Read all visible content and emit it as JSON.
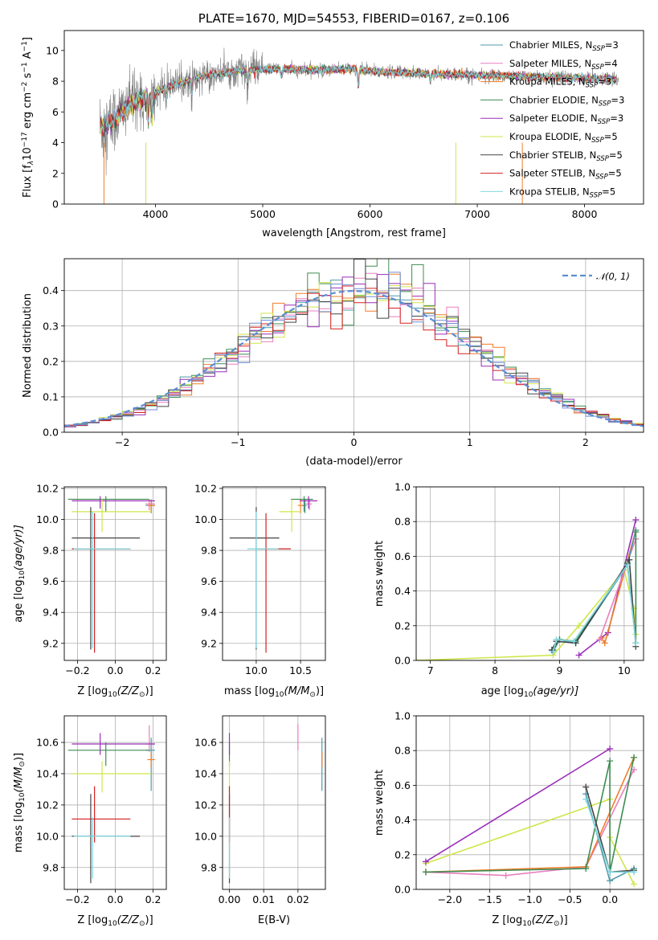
{
  "colors": {
    "Chabrier MILES": "#4f9aa8",
    "Salpeter MILES": "#e87fbf",
    "Kroupa MILES": "#ef7d2a",
    "Chabrier ELODIE": "#3e8c52",
    "Salpeter ELODIE": "#9b2fb8",
    "Kroupa ELODIE": "#cfe64a",
    "Chabrier STELIB": "#444444",
    "Salpeter STELIB": "#d42020",
    "Kroupa STELIB": "#7fd8e0",
    "Kroupa MILES hist": "#6f8fd6",
    "grid": "#b0b0b0",
    "normal": "#5b8fd4",
    "data": "#808080"
  },
  "chart_data": [
    {
      "id": "spectrum",
      "type": "line",
      "title": "PLATE=1670, MJD=54553, FIBERID=0167, z=0.106",
      "xlabel": "wavelength [Angstrom, rest frame]",
      "ylabel": "Flux [f",
      "ylabel_parts": [
        "Flux [f",
        "λ",
        "10",
        "−17",
        " erg cm",
        "−2",
        " s",
        "−1",
        " A",
        "−1",
        "]"
      ],
      "xlim": [
        3150,
        8550
      ],
      "ylim": [
        0,
        11.3
      ],
      "xticks": [
        4000,
        5000,
        6000,
        7000,
        8000
      ],
      "yticks": [
        0,
        2,
        4,
        6,
        8,
        10
      ],
      "grid": false,
      "legend_placement": "top-right",
      "legend": [
        {
          "name": "Chabrier MILES",
          "nssp": "3"
        },
        {
          "name": "Salpeter MILES",
          "nssp": "4"
        },
        {
          "name": "Kroupa MILES",
          "nssp": "3"
        },
        {
          "name": "Chabrier ELODIE",
          "nssp": "3"
        },
        {
          "name": "Salpeter ELODIE",
          "nssp": "3"
        },
        {
          "name": "Kroupa ELODIE",
          "nssp": "5"
        },
        {
          "name": "Chabrier STELIB",
          "nssp": "5"
        },
        {
          "name": "Salpeter STELIB",
          "nssp": "5"
        },
        {
          "name": "Kroupa STELIB",
          "nssp": "5"
        }
      ],
      "legend_sub": "SSP",
      "legend_prefix": "N",
      "data_range": [
        3480,
        8320
      ],
      "continuum": [
        [
          3480,
          5.0
        ],
        [
          3600,
          5.3
        ],
        [
          3700,
          6.2
        ],
        [
          3800,
          6.6
        ],
        [
          3950,
          7.0
        ],
        [
          4100,
          7.6
        ],
        [
          4300,
          8.0
        ],
        [
          4500,
          8.4
        ],
        [
          4800,
          8.7
        ],
        [
          5100,
          8.8
        ],
        [
          5500,
          8.7
        ],
        [
          5800,
          8.8
        ],
        [
          6100,
          8.6
        ],
        [
          6500,
          8.5
        ],
        [
          7000,
          8.4
        ],
        [
          7500,
          8.3
        ],
        [
          8000,
          8.2
        ],
        [
          8320,
          8.1
        ]
      ],
      "absorption_lines": [
        [
          3933,
          1.6
        ],
        [
          3968,
          1.5
        ],
        [
          4101,
          0.8
        ],
        [
          4340,
          1.0
        ],
        [
          4861,
          0.9
        ],
        [
          5175,
          0.6
        ],
        [
          5892,
          1.2
        ],
        [
          6563,
          0.5
        ]
      ],
      "noise_amplitude_blue": 2.2,
      "noise_amplitude_red": 0.35
    },
    {
      "id": "residuals",
      "type": "bar",
      "xlabel": "(data-model)/error",
      "ylabel": "Normed distribution",
      "xlim": [
        -2.5,
        2.5
      ],
      "ylim": [
        0,
        0.49
      ],
      "xticks": [
        -2,
        -1,
        0,
        1,
        2
      ],
      "yticks": [
        0.0,
        0.1,
        0.2,
        0.3,
        0.4
      ],
      "grid": true,
      "legend_placement": "top-right",
      "normal_label": "𝒩(0, 1)",
      "bin_width": 0.1,
      "bin_start": -2.5,
      "hist_mean": 0.05,
      "hist_sigma": 1.0,
      "normal_mean": 0.0,
      "normal_sigma": 1.0
    },
    {
      "id": "age-Z",
      "type": "scatter",
      "xlabel": "Z [log",
      "xlabel_parts": [
        "Z [log",
        "10",
        "(Z/Z",
        "⊙",
        ")]"
      ],
      "ylabel": "age  [log",
      "ylabel_parts": [
        "age  [log",
        "10",
        "(age/yr)]"
      ],
      "xlim": [
        -0.27,
        0.27
      ],
      "ylim": [
        9.09,
        10.21
      ],
      "xticks": [
        -0.2,
        0.0,
        0.2
      ],
      "yticks": [
        9.2,
        9.4,
        9.6,
        9.8,
        10.0,
        10.2
      ],
      "grid": true,
      "points": [
        {
          "series": "Chabrier MILES",
          "x": 0.19,
          "y": 10.09,
          "xerr": [
            0.03,
            0.02
          ],
          "yerr": [
            0.05,
            0.04
          ]
        },
        {
          "series": "Salpeter MILES",
          "x": 0.18,
          "y": 10.1,
          "xerr": [
            0.02,
            0.03
          ],
          "yerr": [
            0.04,
            0.03
          ]
        },
        {
          "series": "Kroupa MILES",
          "x": 0.19,
          "y": 10.09,
          "xerr": [
            0.02,
            0.02
          ],
          "yerr": [
            0.05,
            0.04
          ]
        },
        {
          "series": "Chabrier ELODIE",
          "x": -0.05,
          "y": 10.13,
          "xerr": [
            0.2,
            0.23
          ],
          "yerr": [
            0.08,
            0.02
          ]
        },
        {
          "series": "Salpeter ELODIE",
          "x": -0.08,
          "y": 10.12,
          "xerr": [
            0.15,
            0.29
          ],
          "yerr": [
            0.05,
            0.03
          ]
        },
        {
          "series": "Kroupa ELODIE",
          "x": -0.07,
          "y": 10.05,
          "xerr": [
            0.16,
            0.26
          ],
          "yerr": [
            0.13,
            0.08
          ]
        },
        {
          "series": "Chabrier STELIB",
          "x": -0.13,
          "y": 9.88,
          "xerr": [
            0.1,
            0.26
          ],
          "yerr": [
            0.72,
            0.2
          ]
        },
        {
          "series": "Salpeter STELIB",
          "x": -0.11,
          "y": 9.81,
          "xerr": [
            0.12,
            0.19
          ],
          "yerr": [
            0.67,
            0.23
          ]
        },
        {
          "series": "Kroupa STELIB",
          "x": -0.12,
          "y": 9.81,
          "xerr": [
            0.1,
            0.2
          ],
          "yerr": [
            0.64,
            0.24
          ]
        }
      ]
    },
    {
      "id": "age-mass",
      "type": "scatter",
      "xlabel": "mass [log",
      "xlabel_parts": [
        "mass [log",
        "10",
        "(M/M",
        "⊙",
        ")]"
      ],
      "ylabel": "",
      "xlim": [
        9.62,
        10.78
      ],
      "ylim": [
        9.09,
        10.21
      ],
      "xticks": [
        10.0,
        10.5
      ],
      "yticks": [
        9.2,
        9.4,
        9.6,
        9.8,
        10.0,
        10.2
      ],
      "grid": true,
      "points": [
        {
          "series": "Chabrier MILES",
          "x": 10.55,
          "y": 10.09,
          "xerr": [
            0.03,
            0.02
          ],
          "yerr": [
            0.05,
            0.04
          ]
        },
        {
          "series": "Salpeter MILES",
          "x": 10.6,
          "y": 10.1,
          "xerr": [
            0.04,
            0.03
          ],
          "yerr": [
            0.04,
            0.03
          ]
        },
        {
          "series": "Kroupa MILES",
          "x": 10.5,
          "y": 10.09,
          "xerr": [
            0.03,
            0.03
          ],
          "yerr": [
            0.05,
            0.04
          ]
        },
        {
          "series": "Chabrier ELODIE",
          "x": 10.54,
          "y": 10.13,
          "xerr": [
            0.15,
            0.1
          ],
          "yerr": [
            0.08,
            0.02
          ]
        },
        {
          "series": "Salpeter ELODIE",
          "x": 10.59,
          "y": 10.12,
          "xerr": [
            0.1,
            0.1
          ],
          "yerr": [
            0.05,
            0.03
          ]
        },
        {
          "series": "Kroupa ELODIE",
          "x": 10.4,
          "y": 10.05,
          "xerr": [
            0.14,
            0.1
          ],
          "yerr": [
            0.13,
            0.08
          ]
        },
        {
          "series": "Chabrier STELIB",
          "x": 10.0,
          "y": 9.88,
          "xerr": [
            0.3,
            0.26
          ],
          "yerr": [
            0.72,
            0.2
          ]
        },
        {
          "series": "Salpeter STELIB",
          "x": 10.11,
          "y": 9.81,
          "xerr": [
            0.1,
            0.28
          ],
          "yerr": [
            0.67,
            0.23
          ]
        },
        {
          "series": "Kroupa STELIB",
          "x": 10.0,
          "y": 9.81,
          "xerr": [
            0.1,
            0.25
          ],
          "yerr": [
            0.64,
            0.24
          ]
        }
      ]
    },
    {
      "id": "weight-age",
      "type": "line",
      "xlabel": "age  [log",
      "xlabel_parts": [
        "age  [log",
        "10",
        "(age/yr)]"
      ],
      "ylabel": "mass weight",
      "xlim": [
        6.78,
        10.3
      ],
      "ylim": [
        0,
        1.0
      ],
      "xticks": [
        7,
        8,
        9,
        10
      ],
      "yticks": [
        0.0,
        0.2,
        0.4,
        0.6,
        0.8,
        1.0
      ],
      "grid": true,
      "series": [
        {
          "name": "Kroupa ELODIE",
          "x": [
            6.78,
            8.9,
            9.3,
            10.0,
            10.15,
            10.18
          ],
          "y": [
            0.0,
            0.03,
            0.2,
            0.52,
            0.3,
            0.15
          ]
        },
        {
          "name": "Salpeter ELODIE",
          "x": [
            9.3,
            9.75,
            10.18
          ],
          "y": [
            0.03,
            0.16,
            0.81
          ]
        },
        {
          "name": "Kroupa MILES",
          "x": [
            9.65,
            9.7,
            10.18
          ],
          "y": [
            0.13,
            0.1,
            0.75
          ]
        },
        {
          "name": "Salpeter MILES",
          "x": [
            9.62,
            10.18
          ],
          "y": [
            0.12,
            0.7
          ]
        },
        {
          "name": "Chabrier MILES",
          "x": [
            8.9,
            9.0,
            9.25,
            10.05,
            10.18
          ],
          "y": [
            0.05,
            0.12,
            0.1,
            0.55,
            0.75
          ]
        },
        {
          "name": "Chabrier ELODIE",
          "x": [
            8.9,
            9.0,
            9.25,
            10.05,
            10.18,
            10.18
          ],
          "y": [
            0.06,
            0.12,
            0.11,
            0.56,
            0.1,
            0.74
          ]
        },
        {
          "name": "Chabrier STELIB",
          "x": [
            8.88,
            8.95,
            9.25,
            10.08,
            10.18
          ],
          "y": [
            0.06,
            0.11,
            0.1,
            0.58,
            0.08
          ]
        },
        {
          "name": "Kroupa STELIB",
          "x": [
            8.9,
            8.95,
            9.22,
            10.05,
            10.18
          ],
          "y": [
            0.05,
            0.12,
            0.11,
            0.55,
            0.1
          ]
        }
      ]
    },
    {
      "id": "mass-Z",
      "type": "scatter",
      "xlabel": "Z [log",
      "xlabel_parts": [
        "Z [log",
        "10",
        "(Z/Z",
        "⊙",
        ")]"
      ],
      "ylabel": "mass [log",
      "ylabel_parts": [
        "mass [log",
        "10",
        "(M/M",
        "⊙",
        ")]"
      ],
      "xlim": [
        -0.27,
        0.27
      ],
      "ylim": [
        9.66,
        10.77
      ],
      "xticks": [
        -0.2,
        0.0,
        0.2
      ],
      "yticks": [
        9.8,
        10.0,
        10.2,
        10.4,
        10.6
      ],
      "grid": true,
      "points": [
        {
          "series": "Chabrier MILES",
          "x": 0.19,
          "y": 10.55,
          "xerr": [
            0.03,
            0.02
          ],
          "yerr": [
            0.26,
            0.08
          ]
        },
        {
          "series": "Salpeter MILES",
          "x": 0.18,
          "y": 10.59,
          "xerr": [
            0.02,
            0.03
          ],
          "yerr": [
            0.05,
            0.12
          ]
        },
        {
          "series": "Kroupa MILES",
          "x": 0.19,
          "y": 10.49,
          "xerr": [
            0.02,
            0.02
          ],
          "yerr": [
            0.05,
            0.05
          ]
        },
        {
          "series": "Chabrier ELODIE",
          "x": -0.05,
          "y": 10.55,
          "xerr": [
            0.2,
            0.23
          ],
          "yerr": [
            0.1,
            0.05
          ]
        },
        {
          "series": "Salpeter ELODIE",
          "x": -0.08,
          "y": 10.59,
          "xerr": [
            0.15,
            0.29
          ],
          "yerr": [
            0.07,
            0.07
          ]
        },
        {
          "series": "Kroupa ELODIE",
          "x": -0.07,
          "y": 10.4,
          "xerr": [
            0.16,
            0.26
          ],
          "yerr": [
            0.12,
            0.08
          ]
        },
        {
          "series": "Chabrier STELIB",
          "x": -0.13,
          "y": 10.0,
          "xerr": [
            0.1,
            0.26
          ],
          "yerr": [
            0.3,
            0.27
          ]
        },
        {
          "series": "Salpeter STELIB",
          "x": -0.11,
          "y": 10.11,
          "xerr": [
            0.12,
            0.19
          ],
          "yerr": [
            0.15,
            0.21
          ]
        },
        {
          "series": "Kroupa STELIB",
          "x": -0.12,
          "y": 10.0,
          "xerr": [
            0.1,
            0.2
          ],
          "yerr": [
            0.27,
            0.12
          ]
        }
      ]
    },
    {
      "id": "mass-EBV",
      "type": "scatter",
      "xlabel": "E(B-V)",
      "ylabel": "",
      "xlim": [
        -0.002,
        0.028
      ],
      "ylim": [
        9.66,
        10.77
      ],
      "xticks": [
        0.0,
        0.01,
        0.02
      ],
      "xtick_labels": [
        "0.00",
        "0.01",
        "0.02"
      ],
      "yticks": [
        9.8,
        10.0,
        10.2,
        10.4,
        10.6
      ],
      "grid": true,
      "points": [
        {
          "series": "Chabrier MILES",
          "x": 0.027,
          "y": 10.55,
          "yerr": [
            0.26,
            0.08
          ]
        },
        {
          "series": "Salpeter MILES",
          "x": 0.02,
          "y": 10.6,
          "yerr": [
            0.05,
            0.12
          ]
        },
        {
          "series": "Kroupa MILES",
          "x": 0.027,
          "y": 10.49,
          "yerr": [
            0.05,
            0.05
          ]
        },
        {
          "series": "Chabrier ELODIE",
          "x": 0.0,
          "y": 10.55,
          "yerr": [
            0.1,
            0.05
          ]
        },
        {
          "series": "Salpeter ELODIE",
          "x": 0.0,
          "y": 10.59,
          "yerr": [
            0.07,
            0.07
          ]
        },
        {
          "series": "Kroupa ELODIE",
          "x": 0.0,
          "y": 10.4,
          "yerr": [
            0.12,
            0.08
          ]
        },
        {
          "series": "Chabrier STELIB",
          "x": 0.0,
          "y": 10.0,
          "yerr": [
            0.3,
            0.27
          ]
        },
        {
          "series": "Salpeter STELIB",
          "x": 0.0,
          "y": 10.11,
          "yerr": [
            0.15,
            0.21
          ]
        },
        {
          "series": "Kroupa STELIB",
          "x": 0.0,
          "y": 10.0,
          "yerr": [
            0.27,
            0.12
          ]
        }
      ]
    },
    {
      "id": "weight-Z",
      "type": "line",
      "xlabel": "Z [log",
      "xlabel_parts": [
        "Z [log",
        "10",
        "(Z/Z",
        "⊙",
        ")]"
      ],
      "ylabel": "mass weight",
      "xlim": [
        -2.42,
        0.42
      ],
      "ylim": [
        0,
        1.0
      ],
      "xticks": [
        -2.0,
        -1.5,
        -1.0,
        -0.5,
        0.0
      ],
      "yticks": [
        0.0,
        0.2,
        0.4,
        0.6,
        0.8,
        1.0
      ],
      "grid": true,
      "series": [
        {
          "name": "Kroupa ELODIE",
          "x": [
            -2.3,
            0.0,
            0.0,
            0.3
          ],
          "y": [
            0.15,
            0.52,
            0.3,
            0.03
          ]
        },
        {
          "name": "Salpeter ELODIE",
          "x": [
            -2.3,
            0.0
          ],
          "y": [
            0.16,
            0.81
          ]
        },
        {
          "name": "Salpeter MILES",
          "x": [
            -2.3,
            -1.3,
            -0.3,
            0.3
          ],
          "y": [
            0.1,
            0.08,
            0.13,
            0.69
          ]
        },
        {
          "name": "Kroupa MILES",
          "x": [
            -2.3,
            -0.3,
            0.3
          ],
          "y": [
            0.1,
            0.13,
            0.76
          ]
        },
        {
          "name": "Chabrier ELODIE",
          "x": [
            -2.3,
            -0.3,
            0.0,
            0.0,
            0.3
          ],
          "y": [
            0.1,
            0.12,
            0.74,
            0.1,
            0.76
          ]
        },
        {
          "name": "Chabrier MILES",
          "x": [
            -0.3,
            0.0,
            0.3
          ],
          "y": [
            0.55,
            0.05,
            0.12
          ]
        },
        {
          "name": "Chabrier STELIB",
          "x": [
            -0.3,
            0.0,
            0.3
          ],
          "y": [
            0.59,
            0.1,
            0.11
          ]
        },
        {
          "name": "Kroupa STELIB",
          "x": [
            -0.3,
            0.0,
            0.3
          ],
          "y": [
            0.52,
            0.1,
            0.1
          ]
        }
      ]
    }
  ]
}
